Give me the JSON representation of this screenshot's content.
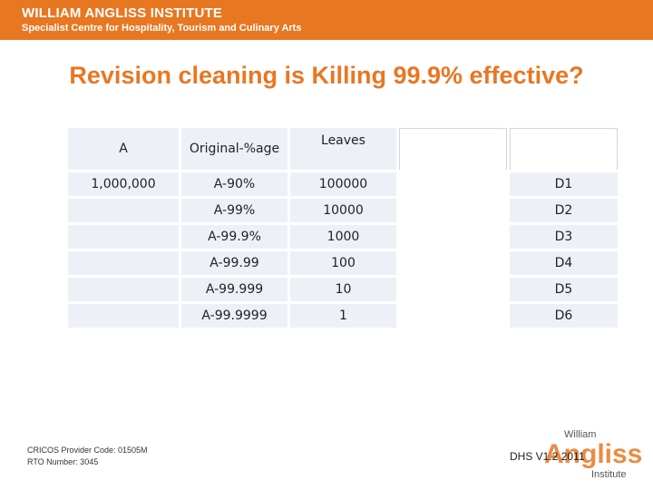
{
  "header": {
    "line1": "WILLIAM ANGLISS INSTITUTE",
    "line2": "Specialist Centre for Hospitality, Tourism and Culinary Arts"
  },
  "title": "Revision cleaning is Killing 99.9% effective?",
  "table": {
    "header": [
      "A",
      "Original-%age",
      "Leaves",
      "",
      ""
    ],
    "rows": [
      [
        "1,000,000",
        "A-90%",
        "100000",
        "",
        "D1"
      ],
      [
        "",
        "A-99%",
        "10000",
        "",
        "D2"
      ],
      [
        "",
        "A-99.9%",
        "1000",
        "",
        "D3"
      ],
      [
        "",
        "A-99.99",
        "100",
        "",
        "D4"
      ],
      [
        "",
        "A-99.999",
        "10",
        "",
        "D5"
      ],
      [
        "",
        "A-99.9999",
        "1",
        "",
        "D6"
      ]
    ]
  },
  "footer": {
    "cricos": "CRICOS Provider Code: 01505M",
    "rto": "RTO Number: 3045",
    "version": "DHS V1.2 2011"
  },
  "logo": {
    "top": "William",
    "middle": "Angliss",
    "bottom": "Institute"
  },
  "colors": {
    "brand": "#e87722",
    "cell": "#edf1f7"
  }
}
